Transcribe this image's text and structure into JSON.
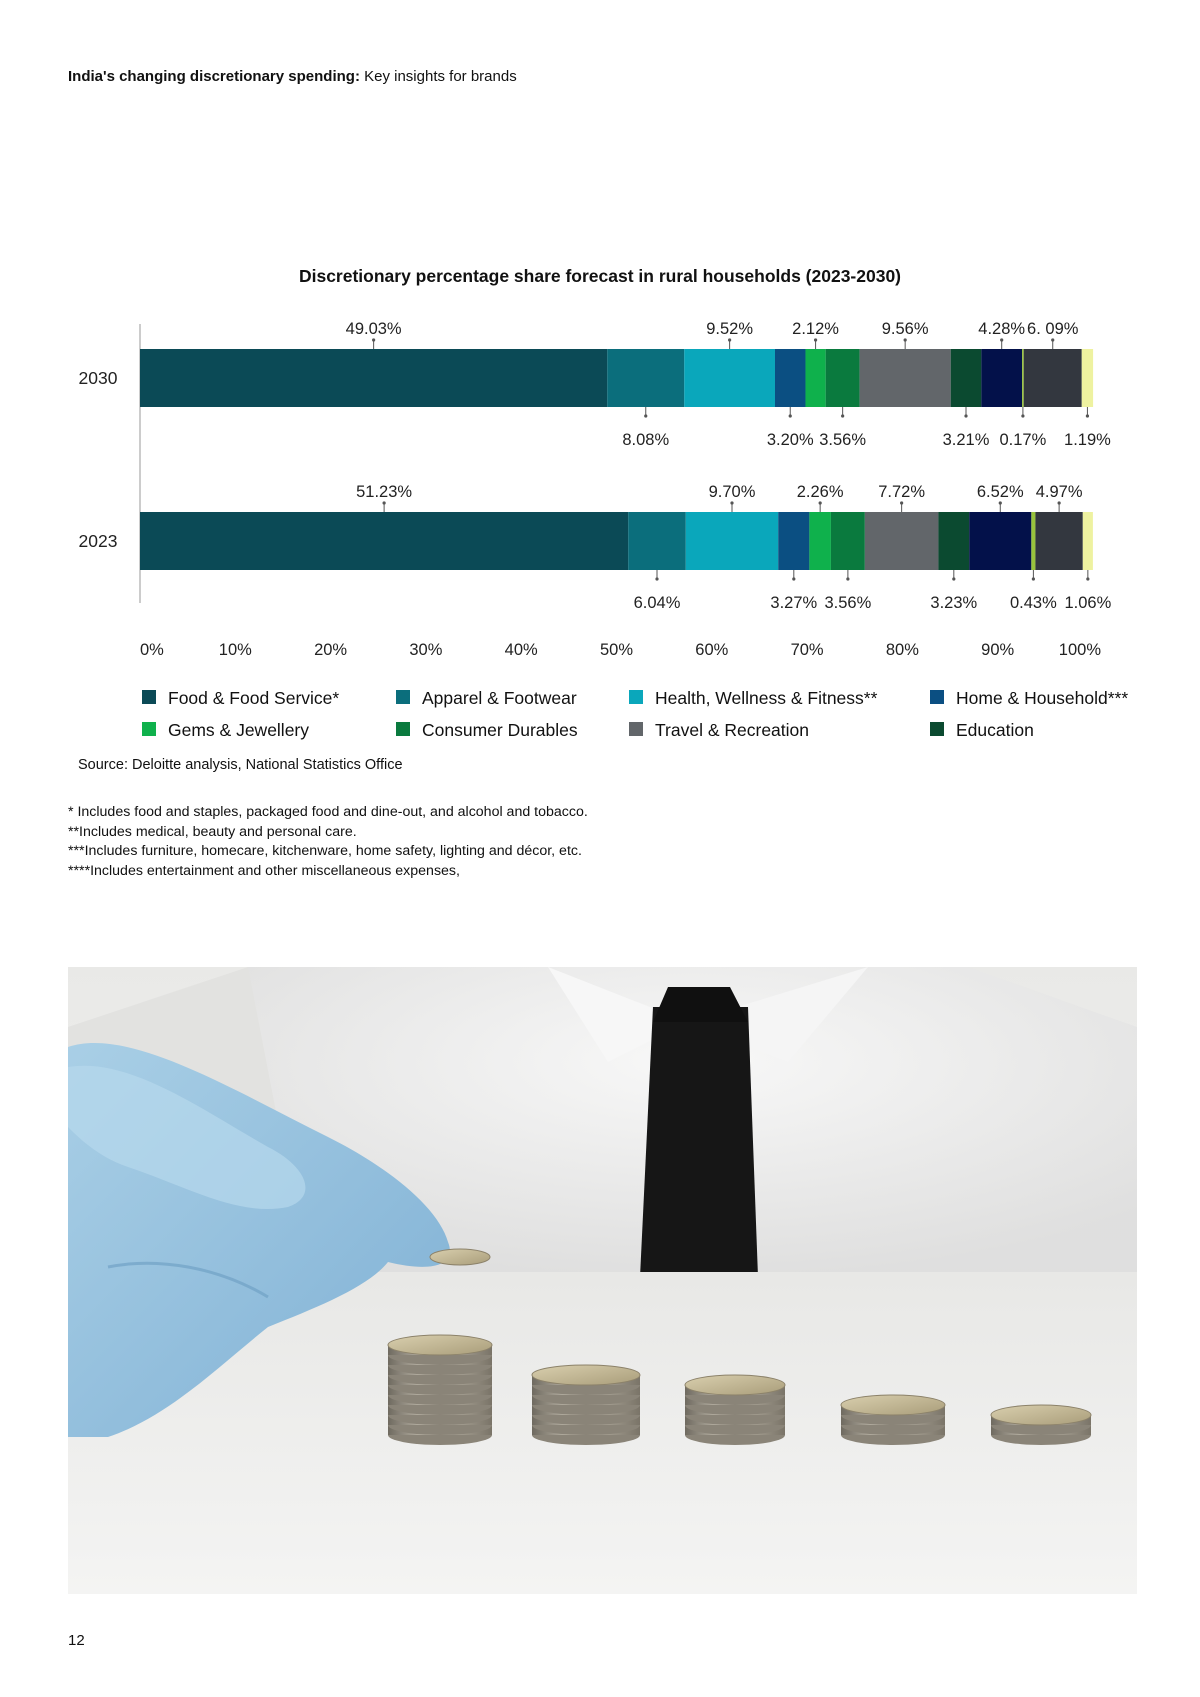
{
  "header": {
    "title_bold": "India's changing discretionary spending:",
    "title_rest": " Key insights for brands"
  },
  "chart_data": {
    "type": "bar",
    "orientation": "horizontal",
    "stacked": true,
    "title": "Discretionary percentage share forecast in rural households (2023-2030)",
    "categories": [
      "2030",
      "2023"
    ],
    "x_ticks": [
      "0%",
      "10%",
      "20%",
      "30%",
      "40%",
      "50%",
      "60%",
      "70%",
      "80%",
      "90%",
      "100%"
    ],
    "xlim": [
      0,
      100
    ],
    "legend_position": "bottom",
    "series": [
      {
        "name": "Food & Food Service*",
        "color": "#0B4A56",
        "values": [
          49.03,
          51.23
        ],
        "labels": [
          "49.03%",
          "51.23%"
        ],
        "label_side": [
          "top",
          "top"
        ]
      },
      {
        "name": "Apparel & Footwear",
        "color": "#0B6E7C",
        "values": [
          8.08,
          6.04
        ],
        "labels": [
          "8.08%",
          "6.04%"
        ],
        "label_side": [
          "bottom",
          "bottom"
        ]
      },
      {
        "name": "Health, Wellness & Fitness**",
        "color": "#0AA7BB",
        "values": [
          9.52,
          9.7
        ],
        "labels": [
          "9.52%",
          "9.70%"
        ],
        "label_side": [
          "top",
          "top"
        ]
      },
      {
        "name": "Home & Household***",
        "color": "#0B4F82",
        "values": [
          3.2,
          3.27
        ],
        "labels": [
          "3.20%",
          "3.27%"
        ],
        "label_side": [
          "bottom",
          "bottom"
        ]
      },
      {
        "name": "Gems & Jewellery",
        "color": "#0FB14C",
        "values": [
          2.12,
          2.26
        ],
        "labels": [
          "2.12%",
          "2.26%"
        ],
        "label_side": [
          "top",
          "top"
        ]
      },
      {
        "name": "Consumer Durables",
        "color": "#0A7A3E",
        "values": [
          3.56,
          3.56
        ],
        "labels": [
          "3.56%",
          "3.56%"
        ],
        "label_side": [
          "bottom",
          "bottom"
        ]
      },
      {
        "name": "Travel & Recreation",
        "color": "#62666A",
        "values": [
          9.56,
          7.72
        ],
        "labels": [
          "9.56%",
          "7.72%"
        ],
        "label_side": [
          "top",
          "top"
        ]
      },
      {
        "name": "Education",
        "color": "#0B4A30",
        "values": [
          3.21,
          3.23
        ],
        "labels": [
          "3.21%",
          "3.23%"
        ],
        "label_side": [
          "bottom",
          "bottom"
        ]
      },
      {
        "name": "",
        "color": "#03114A",
        "values": [
          4.28,
          6.52
        ],
        "labels": [
          "4.28%",
          "6.52%"
        ],
        "label_side": [
          "top",
          "top"
        ]
      },
      {
        "name": "",
        "color": "#98C33C",
        "values": [
          0.17,
          0.43
        ],
        "labels": [
          "0.17%",
          "0.43%"
        ],
        "label_side": [
          "bottom",
          "bottom"
        ]
      },
      {
        "name": "",
        "color": "#33373F",
        "values": [
          6.09,
          4.97
        ],
        "labels": [
          "6. 09%",
          "4.97%"
        ],
        "label_side": [
          "top",
          "top"
        ]
      },
      {
        "name": "",
        "color": "#EEF2A0",
        "values": [
          1.19,
          1.06
        ],
        "labels": [
          "1.19%",
          "1.06%"
        ],
        "label_side": [
          "bottom",
          "bottom"
        ]
      }
    ]
  },
  "legend": [
    {
      "label": "Food & Food Service*",
      "color": "#0B4A56"
    },
    {
      "label": "Apparel & Footwear",
      "color": "#0B6E7C"
    },
    {
      "label": "Health, Wellness & Fitness**",
      "color": "#0AA7BB"
    },
    {
      "label": "Home & Household***",
      "color": "#0B4F82"
    },
    {
      "label": "Gems & Jewellery",
      "color": "#0FB14C"
    },
    {
      "label": "Consumer Durables",
      "color": "#0A7A3E"
    },
    {
      "label": "Travel & Recreation",
      "color": "#62666A"
    },
    {
      "label": "Education",
      "color": "#0B4A30"
    }
  ],
  "source": "Source: Deloitte analysis, National Statistics Office",
  "footnotes": [
    "* Includes food and staples, packaged food and dine-out, and alcohol and tobacco.",
    "**Includes medical, beauty and personal care.",
    "***Includes furniture, homecare, kitchenware, home safety, lighting and décor, etc.",
    "****Includes entertainment and other miscellaneous expenses,"
  ],
  "photo": {
    "stack_counts": [
      9,
      6,
      5,
      3,
      2
    ]
  },
  "page_number": "12"
}
